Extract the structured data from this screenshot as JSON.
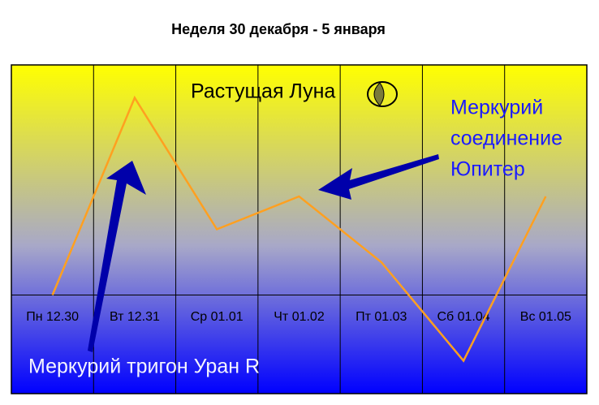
{
  "chart_data": {
    "type": "line",
    "title": "Неделя 30 декабря - 5 января",
    "categories": [
      "Пн 12.30",
      "Вт 12.31",
      "Ср 01.01",
      "Чт 01.02",
      "Пт 01.03",
      "Сб 01.04",
      "Вс 01.05"
    ],
    "values": [
      0,
      6,
      2,
      3,
      1,
      -2,
      3
    ],
    "color": "#ffa020",
    "ylim": [
      -3,
      7
    ],
    "annotations": {
      "moon": "Растущая Луна",
      "conjunction": [
        "Меркурий",
        "соединение",
        "Юпитер"
      ],
      "trine": "Меркурий тригон Уран R"
    }
  }
}
